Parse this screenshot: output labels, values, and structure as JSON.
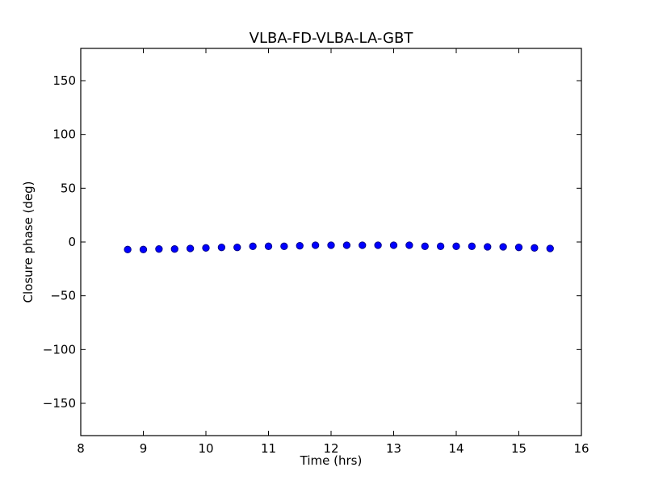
{
  "chart_data": {
    "type": "scatter",
    "title": "VLBA-FD-VLBA-LA-GBT",
    "xlabel": "Time (hrs)",
    "ylabel": "Closure phase (deg)",
    "xlim": [
      8,
      16
    ],
    "ylim": [
      -180,
      180
    ],
    "xticks": [
      8,
      9,
      10,
      11,
      12,
      13,
      14,
      15,
      16
    ],
    "yticks": [
      -150,
      -100,
      -50,
      0,
      50,
      100,
      150
    ],
    "xtick_labels": [
      "8",
      "9",
      "10",
      "11",
      "12",
      "13",
      "14",
      "15",
      "16"
    ],
    "ytick_labels": [
      "−150",
      "−100",
      "−50",
      "0",
      "50",
      "100",
      "150"
    ],
    "grid": false,
    "marker_color": "#0000ff",
    "marker_edge_color": "#000080",
    "series": [
      {
        "x": [
          8.75,
          9.0,
          9.25,
          9.5,
          9.75,
          10.0,
          10.25,
          10.5,
          10.75,
          11.0,
          11.25,
          11.5,
          11.75,
          12.0,
          12.25,
          12.5,
          12.75,
          13.0,
          13.25,
          13.5,
          13.75,
          14.0,
          14.25,
          14.5,
          14.75,
          15.0,
          15.25,
          15.5
        ],
        "y": [
          -7.0,
          -7.0,
          -6.5,
          -6.5,
          -6.0,
          -5.5,
          -5.0,
          -5.0,
          -4.0,
          -4.0,
          -4.0,
          -3.5,
          -3.0,
          -3.0,
          -3.0,
          -3.0,
          -3.0,
          -3.0,
          -3.0,
          -4.0,
          -4.0,
          -4.0,
          -4.0,
          -4.5,
          -4.5,
          -5.0,
          -5.5,
          -6.0
        ]
      }
    ]
  }
}
